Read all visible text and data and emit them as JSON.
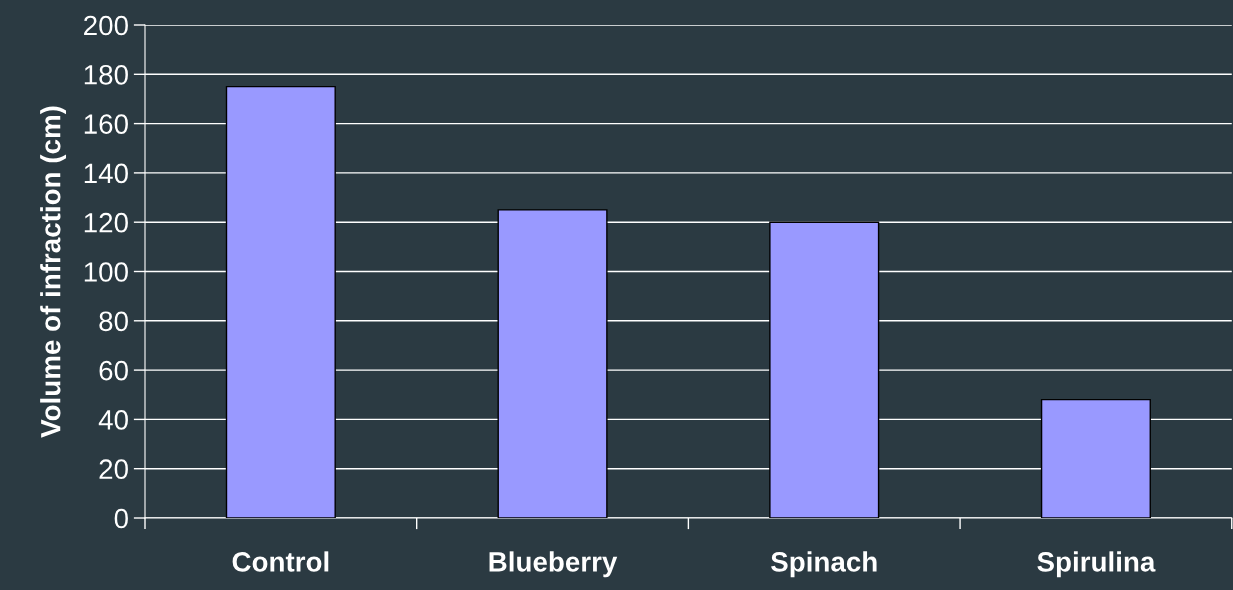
{
  "chart_data": {
    "type": "bar",
    "ylabel": "Volume of infraction (cm)",
    "categories": [
      "Control",
      "Blueberry",
      "Spinach",
      "Spirulina"
    ],
    "values": [
      175,
      125,
      120,
      48
    ],
    "color": "#9999ff",
    "ylim": [
      0,
      200
    ],
    "yticks": [
      0,
      20,
      40,
      60,
      80,
      100,
      120,
      140,
      160,
      180,
      200
    ],
    "grid": "y",
    "legend": false
  }
}
